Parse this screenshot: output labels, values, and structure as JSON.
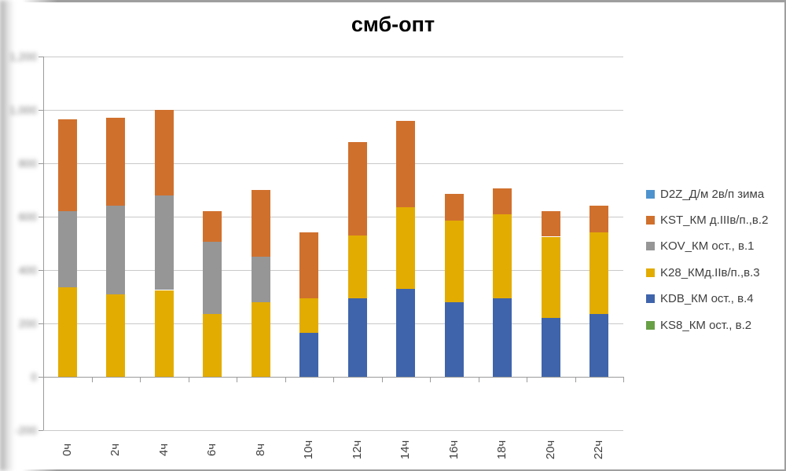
{
  "chart_data": {
    "type": "bar",
    "stacked": true,
    "title": "смб-опт",
    "categories": [
      "0ч",
      "2ч",
      "4ч",
      "6ч",
      "8ч",
      "10ч",
      "12ч",
      "14ч",
      "16ч",
      "18ч",
      "20ч",
      "22ч"
    ],
    "series": [
      {
        "name": "KS8_КМ ост., в.2",
        "color": "#68A046",
        "values": [
          0,
          0,
          0,
          0,
          0,
          0,
          0,
          0,
          0,
          0,
          0,
          0
        ]
      },
      {
        "name": "KDB_КМ ост., в.4",
        "color": "#3F64AB",
        "values": [
          0,
          0,
          0,
          0,
          0,
          165,
          295,
          330,
          280,
          295,
          220,
          235
        ]
      },
      {
        "name": "K28_КМд.IIв/п.,в.3",
        "color": "#E3AC00",
        "values": [
          335,
          310,
          325,
          235,
          280,
          130,
          235,
          305,
          305,
          315,
          305,
          305
        ]
      },
      {
        "name": "KOV_КМ ост., в.1",
        "color": "#969696",
        "values": [
          285,
          330,
          355,
          270,
          170,
          0,
          0,
          0,
          0,
          0,
          0,
          0
        ]
      },
      {
        "name": "KST_КМ д.IIIв/п.,в.2",
        "color": "#D0702D",
        "values": [
          345,
          330,
          320,
          115,
          250,
          245,
          350,
          325,
          100,
          95,
          95,
          100
        ]
      },
      {
        "name": "D2Z_Д/м 2в/п зима",
        "color": "#4E93CE",
        "values": [
          0,
          0,
          0,
          0,
          0,
          0,
          0,
          0,
          0,
          0,
          0,
          0
        ]
      }
    ],
    "legend": {
      "position": "right",
      "order": [
        5,
        4,
        3,
        2,
        1,
        0
      ]
    },
    "y_axis": {
      "min": -200,
      "max": 1200,
      "step": 200,
      "tick_labels": [
        "1,200",
        "1,000",
        "800",
        "600",
        "400",
        "200",
        "0",
        "-200"
      ],
      "labels_blurred": true
    },
    "grid": true
  }
}
